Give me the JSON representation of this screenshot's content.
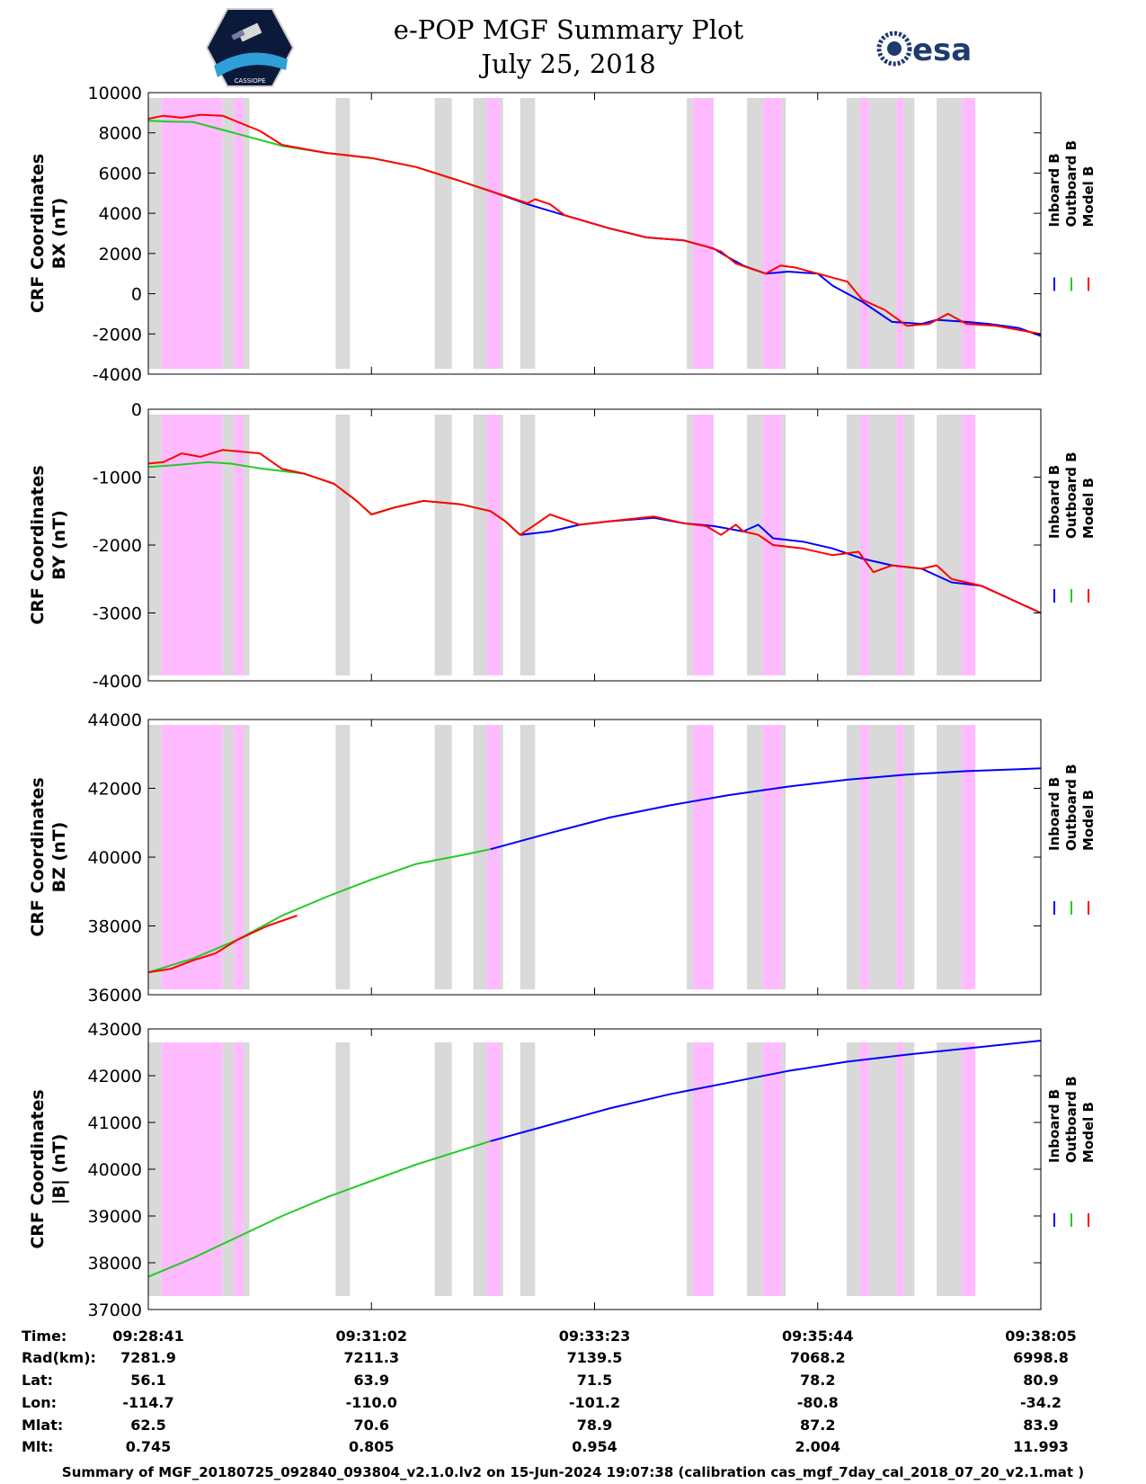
{
  "header": {
    "title": "e-POP MGF Summary Plot",
    "date": "July 25, 2018",
    "mission_logo": "cassiope-mission-logo",
    "mission_logo_text": "CASSIOPE",
    "agency_logo_text": "esa"
  },
  "legend": {
    "inboard": "Inboard B",
    "outboard": "Outboard B",
    "model": "Model B"
  },
  "colors": {
    "inboard": "#0000ff",
    "outboard": "#22cc22",
    "model": "#ff0000",
    "gray_band": "#d9d9d9",
    "pink_band": "#ffbbff"
  },
  "chart_data": [
    {
      "type": "line",
      "ylabel_line1": "CRF Coordinates",
      "ylabel_line2": "BX (nT)",
      "ylim": [
        -4000,
        10000
      ],
      "yticks": [
        -4000,
        -2000,
        0,
        2000,
        4000,
        6000,
        8000,
        10000
      ],
      "ytick_labels": [
        "-4000",
        "-2000",
        "0",
        "2000",
        "4000",
        "6000",
        "8000",
        "10000"
      ],
      "series": [
        {
          "name": "Outboard B",
          "x": [
            0,
            30,
            60,
            120,
            180,
            240,
            300,
            360,
            420,
            460
          ],
          "values": [
            8600,
            8560,
            8540,
            7950,
            7350,
            7000,
            6750,
            6300,
            5600,
            5100
          ]
        },
        {
          "name": "Inboard B",
          "x": [
            460,
            510,
            560,
            620,
            670,
            720,
            760,
            780,
            800,
            830,
            860,
            900,
            920,
            960,
            1000,
            1040,
            1060,
            1100,
            1130,
            1170,
            1200
          ],
          "values": [
            5100,
            4450,
            3900,
            3250,
            2800,
            2650,
            2250,
            1800,
            1400,
            1000,
            1100,
            1000,
            400,
            -400,
            -1400,
            -1500,
            -1300,
            -1400,
            -1500,
            -1700,
            -2100
          ]
        },
        {
          "name": "Model B",
          "x": [
            0,
            20,
            45,
            70,
            100,
            120,
            150,
            180,
            240,
            300,
            360,
            420,
            460,
            510,
            520,
            540,
            560,
            620,
            670,
            720,
            750,
            770,
            790,
            830,
            850,
            870,
            900,
            940,
            960,
            990,
            1020,
            1050,
            1075,
            1100,
            1140,
            1170,
            1200
          ],
          "values": [
            8700,
            8850,
            8750,
            8900,
            8850,
            8550,
            8100,
            7400,
            7000,
            6750,
            6300,
            5600,
            5100,
            4500,
            4700,
            4450,
            3900,
            3250,
            2800,
            2650,
            2350,
            2100,
            1500,
            1000,
            1400,
            1300,
            1000,
            600,
            -300,
            -800,
            -1600,
            -1500,
            -1000,
            -1500,
            -1600,
            -1800,
            -2000
          ]
        }
      ]
    },
    {
      "type": "line",
      "ylabel_line1": "CRF Coordinates",
      "ylabel_line2": "BY (nT)",
      "ylim": [
        -4000,
        0
      ],
      "yticks": [
        -4000,
        -3000,
        -2000,
        -1000,
        0
      ],
      "ytick_labels": [
        "-4000",
        "-3000",
        "-2000",
        "-1000",
        "0"
      ],
      "series": [
        {
          "name": "Outboard B",
          "x": [
            0,
            40,
            80,
            110,
            150,
            210,
            250,
            280,
            300,
            330,
            370,
            420,
            460,
            480,
            500
          ],
          "values": [
            -850,
            -820,
            -780,
            -800,
            -870,
            -950,
            -1100,
            -1350,
            -1550,
            -1450,
            -1350,
            -1400,
            -1500,
            -1650,
            -1850
          ]
        },
        {
          "name": "Inboard B",
          "x": [
            500,
            540,
            580,
            620,
            680,
            720,
            760,
            800,
            820,
            840,
            880,
            920,
            960,
            1000,
            1040,
            1060,
            1080,
            1120,
            1160,
            1200
          ],
          "values": [
            -1850,
            -1800,
            -1700,
            -1650,
            -1600,
            -1680,
            -1720,
            -1800,
            -1700,
            -1900,
            -1950,
            -2050,
            -2200,
            -2300,
            -2350,
            -2450,
            -2550,
            -2600,
            -2800,
            -3000
          ]
        },
        {
          "name": "Model B",
          "x": [
            0,
            20,
            45,
            70,
            100,
            120,
            150,
            180,
            210,
            250,
            280,
            300,
            330,
            370,
            420,
            460,
            480,
            500,
            520,
            540,
            580,
            620,
            680,
            720,
            750,
            770,
            790,
            800,
            820,
            840,
            880,
            920,
            955,
            975,
            1000,
            1040,
            1060,
            1080,
            1100,
            1120,
            1160,
            1200
          ],
          "values": [
            -800,
            -780,
            -650,
            -700,
            -600,
            -620,
            -650,
            -880,
            -950,
            -1100,
            -1350,
            -1550,
            -1450,
            -1350,
            -1400,
            -1500,
            -1650,
            -1850,
            -1700,
            -1550,
            -1700,
            -1650,
            -1580,
            -1680,
            -1720,
            -1850,
            -1700,
            -1800,
            -1850,
            -2000,
            -2050,
            -2150,
            -2100,
            -2400,
            -2300,
            -2350,
            -2300,
            -2500,
            -2550,
            -2600,
            -2800,
            -3000
          ]
        }
      ]
    },
    {
      "type": "line",
      "ylabel_line1": "CRF Coordinates",
      "ylabel_line2": "BZ (nT)",
      "ylim": [
        36000,
        44000
      ],
      "yticks": [
        36000,
        38000,
        40000,
        42000,
        44000
      ],
      "ytick_labels": [
        "36000",
        "38000",
        "40000",
        "42000",
        "44000"
      ],
      "series": [
        {
          "name": "Outboard B",
          "x": [
            0,
            60,
            120,
            180,
            240,
            300,
            360,
            420,
            460
          ],
          "values": [
            36650,
            37050,
            37600,
            38300,
            38850,
            39350,
            39800,
            40050,
            40230
          ]
        },
        {
          "name": "Inboard B",
          "x": [
            460,
            540,
            620,
            700,
            780,
            860,
            940,
            1020,
            1100,
            1200
          ],
          "values": [
            40230,
            40700,
            41150,
            41500,
            41800,
            42050,
            42250,
            42400,
            42500,
            42580
          ]
        },
        {
          "name": "Model B",
          "x": [
            0,
            30,
            60,
            90,
            120,
            160,
            200
          ],
          "values": [
            36650,
            36750,
            37000,
            37200,
            37600,
            38000,
            38300
          ]
        }
      ]
    },
    {
      "type": "line",
      "ylabel_line1": "CRF Coordinates",
      "ylabel_line2": "|B| (nT)",
      "ylim": [
        37000,
        43000
      ],
      "yticks": [
        37000,
        38000,
        39000,
        40000,
        41000,
        42000,
        43000
      ],
      "ytick_labels": [
        "37000",
        "38000",
        "39000",
        "40000",
        "41000",
        "42000",
        "43000"
      ],
      "series": [
        {
          "name": "Outboard B",
          "x": [
            0,
            60,
            120,
            180,
            240,
            300,
            360,
            420,
            460
          ],
          "values": [
            37700,
            38100,
            38550,
            39000,
            39400,
            39750,
            40100,
            40400,
            40600
          ]
        },
        {
          "name": "Inboard B",
          "x": [
            460,
            540,
            620,
            700,
            780,
            860,
            940,
            1020,
            1100,
            1200
          ],
          "values": [
            40600,
            40950,
            41300,
            41600,
            41850,
            42100,
            42300,
            42450,
            42580,
            42750
          ]
        }
      ]
    }
  ],
  "x_axis": {
    "range": [
      0,
      1200
    ],
    "tick_positions": [
      0,
      300,
      600,
      900,
      1200
    ],
    "shaded_bands": [
      {
        "start": 0,
        "end": 18,
        "kind": "gray"
      },
      {
        "start": 18,
        "end": 100,
        "kind": "pink"
      },
      {
        "start": 100,
        "end": 115,
        "kind": "gray"
      },
      {
        "start": 115,
        "end": 128,
        "kind": "pink"
      },
      {
        "start": 128,
        "end": 136,
        "kind": "gray"
      },
      {
        "start": 252,
        "end": 271,
        "kind": "gray"
      },
      {
        "start": 385,
        "end": 408,
        "kind": "gray"
      },
      {
        "start": 437,
        "end": 455,
        "kind": "gray"
      },
      {
        "start": 455,
        "end": 473,
        "kind": "pink"
      },
      {
        "start": 473,
        "end": 477,
        "kind": "gray"
      },
      {
        "start": 500,
        "end": 520,
        "kind": "gray"
      },
      {
        "start": 724,
        "end": 732,
        "kind": "gray"
      },
      {
        "start": 732,
        "end": 760,
        "kind": "pink"
      },
      {
        "start": 805,
        "end": 826,
        "kind": "gray"
      },
      {
        "start": 826,
        "end": 852,
        "kind": "pink"
      },
      {
        "start": 852,
        "end": 857,
        "kind": "gray"
      },
      {
        "start": 939,
        "end": 957,
        "kind": "gray"
      },
      {
        "start": 957,
        "end": 969,
        "kind": "pink"
      },
      {
        "start": 969,
        "end": 1006,
        "kind": "gray"
      },
      {
        "start": 1006,
        "end": 1015,
        "kind": "pink"
      },
      {
        "start": 1015,
        "end": 1030,
        "kind": "gray"
      },
      {
        "start": 1060,
        "end": 1094,
        "kind": "gray"
      },
      {
        "start": 1094,
        "end": 1112,
        "kind": "pink"
      }
    ]
  },
  "ephemeris": {
    "row_labels": [
      "Time:",
      "Rad(km):",
      "Lat:",
      "Lon:",
      "Mlat:",
      "Mlt:"
    ],
    "columns": [
      [
        "09:28:41",
        "7281.9",
        "56.1",
        "-114.7",
        "62.5",
        "0.745"
      ],
      [
        "09:31:02",
        "7211.3",
        "63.9",
        "-110.0",
        "70.6",
        "0.805"
      ],
      [
        "09:33:23",
        "7139.5",
        "71.5",
        "-101.2",
        "78.9",
        "0.954"
      ],
      [
        "09:35:44",
        "7068.2",
        "78.2",
        "-80.8",
        "87.2",
        "2.004"
      ],
      [
        "09:38:05",
        "6998.8",
        "80.9",
        "-34.2",
        "83.9",
        "11.993"
      ]
    ]
  },
  "footer": "Summary of MGF_20180725_092840_093804_v2.1.0.lv2 on 15-Jun-2024 19:07:38 (calibration cas_mgf_7day_cal_2018_07_20_v2.1.mat )"
}
